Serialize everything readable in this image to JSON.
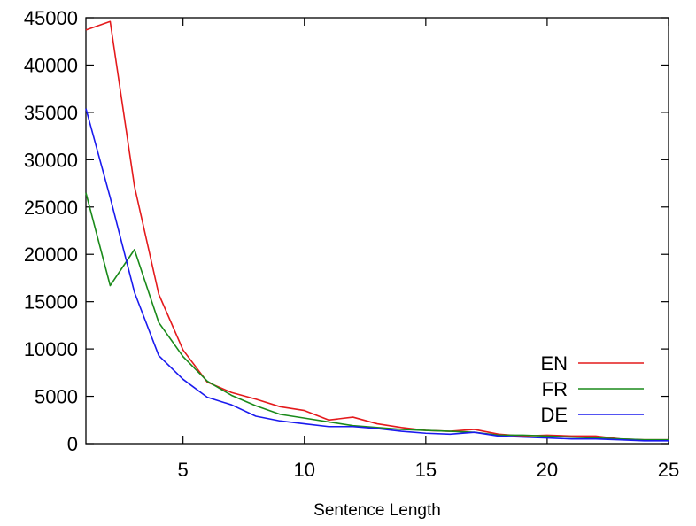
{
  "chart_data": {
    "type": "line",
    "title": "",
    "xlabel": "Sentence Length",
    "ylabel": "",
    "xlim": [
      1,
      25
    ],
    "ylim": [
      0,
      45000
    ],
    "xticks": [
      5,
      10,
      15,
      20,
      25
    ],
    "yticks": [
      0,
      5000,
      10000,
      15000,
      20000,
      25000,
      30000,
      35000,
      40000,
      45000
    ],
    "grid": false,
    "legend": "bottom-right",
    "x": [
      1,
      2,
      3,
      4,
      5,
      6,
      7,
      8,
      9,
      10,
      11,
      12,
      13,
      14,
      15,
      16,
      17,
      18,
      19,
      20,
      21,
      22,
      23,
      24,
      25
    ],
    "series": [
      {
        "name": "EN",
        "color": "#e41a1c",
        "values": [
          43700,
          44600,
          27200,
          15800,
          9900,
          6500,
          5400,
          4700,
          3900,
          3500,
          2500,
          2800,
          2100,
          1700,
          1400,
          1300,
          1500,
          1000,
          800,
          900,
          800,
          800,
          500,
          400,
          400
        ]
      },
      {
        "name": "FR",
        "color": "#1a8a1a",
        "values": [
          26500,
          16700,
          20500,
          12800,
          9200,
          6600,
          5100,
          4000,
          3100,
          2700,
          2300,
          1900,
          1700,
          1500,
          1400,
          1300,
          1200,
          900,
          900,
          800,
          700,
          600,
          500,
          400,
          400
        ]
      },
      {
        "name": "DE",
        "color": "#1a1aee",
        "values": [
          35400,
          26000,
          16000,
          9300,
          6800,
          4900,
          4100,
          2900,
          2400,
          2100,
          1800,
          1800,
          1600,
          1300,
          1100,
          1000,
          1200,
          800,
          700,
          600,
          500,
          500,
          400,
          300,
          300
        ]
      }
    ]
  }
}
